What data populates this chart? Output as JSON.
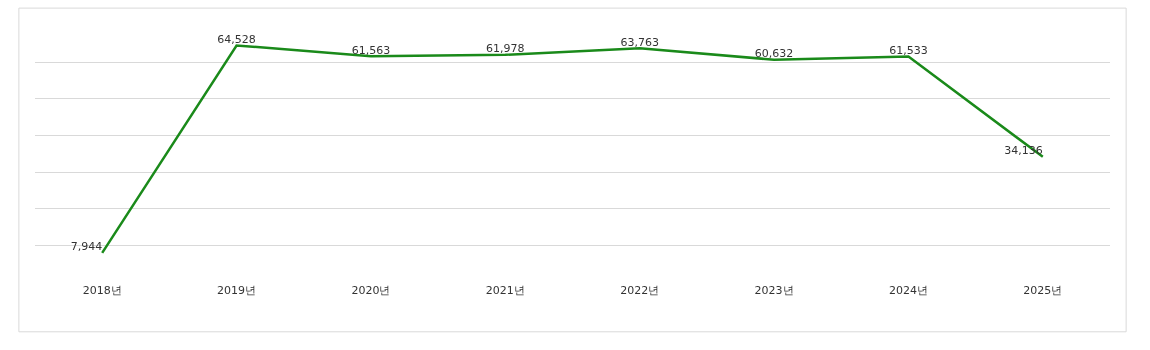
{
  "chart_data": {
    "type": "line",
    "categories": [
      "2018년",
      "2019년",
      "2020년",
      "2021년",
      "2022년",
      "2023년",
      "2024년",
      "2025년"
    ],
    "series": [
      {
        "color": "#1a8a1a",
        "values": [
          7944,
          64528,
          61563,
          61978,
          63763,
          60632,
          61533,
          34136
        ],
        "value_labels": [
          "7,944",
          "64,528",
          "61,563",
          "61,978",
          "63,763",
          "60,632",
          "61,533",
          "34,136"
        ]
      }
    ],
    "grid": "y",
    "marker": "none",
    "line_style": "solid",
    "tick_labels": "x"
  }
}
